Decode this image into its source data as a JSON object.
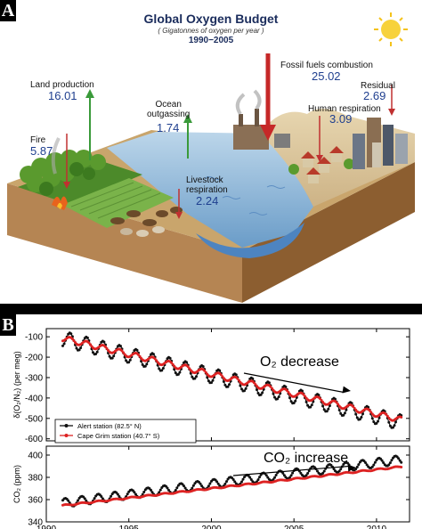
{
  "panel_a": {
    "tag": "A",
    "title": "Global Oxygen Budget",
    "subtitle": "( Gigatonnes of oxygen per year )",
    "years": "1990−2005",
    "items": [
      {
        "label": "Land production",
        "value": "16.01"
      },
      {
        "label": "Fire",
        "value": "5.87"
      },
      {
        "label": "Ocean\noutgassing",
        "value": "1.74"
      },
      {
        "label": "Livestock\nrespiration",
        "value": "2.24"
      },
      {
        "label": "Fossil fuels combustion",
        "value": "25.02"
      },
      {
        "label": "Residual",
        "value": "2.69"
      },
      {
        "label": "Human respiration",
        "value": "3.09"
      }
    ]
  },
  "panel_b": {
    "tag": "B"
  },
  "chart_data": [
    {
      "type": "line",
      "ylabel": "δ(O₂/N₂) (per meg)",
      "xlim": [
        1990,
        2012
      ],
      "ylim": [
        -610,
        -60
      ],
      "yticks": [
        -100,
        -200,
        -300,
        -400,
        -500,
        -600
      ],
      "annotation": "O₂ decrease",
      "legend_position": "bottom-left",
      "series": [
        {
          "name": "Alert station (82.5° N)",
          "color": "#111111",
          "trend_start": -90,
          "trend_slope": -20,
          "amplitude": 75,
          "x_start": 1991.0,
          "x_end": 2011.5
        },
        {
          "name": "Cape Grim station (40.7° S)",
          "color": "#dd2222",
          "trend_start": -88,
          "trend_slope": -19.5,
          "amplitude": 28,
          "x_start": 1991.0,
          "x_end": 2011.5
        }
      ]
    },
    {
      "type": "line",
      "ylabel": "CO₂ (ppm)",
      "xlabel": "",
      "xlim": [
        1990,
        2012
      ],
      "ylim": [
        340,
        408
      ],
      "yticks": [
        340,
        360,
        380,
        400
      ],
      "xticks": [
        1990,
        1995,
        2000,
        2005,
        2010
      ],
      "annotation": "CO₂ increase",
      "series": [
        {
          "color": "#111111",
          "trend_start": 355,
          "trend_slope": 1.9,
          "amplitude": 8,
          "x_start": 1991.0,
          "x_end": 2011.5
        },
        {
          "color": "#dd2222",
          "trend_start": 353,
          "trend_slope": 1.7,
          "amplitude": 1.2,
          "x_start": 1991.0,
          "x_end": 2011.5
        }
      ]
    }
  ]
}
